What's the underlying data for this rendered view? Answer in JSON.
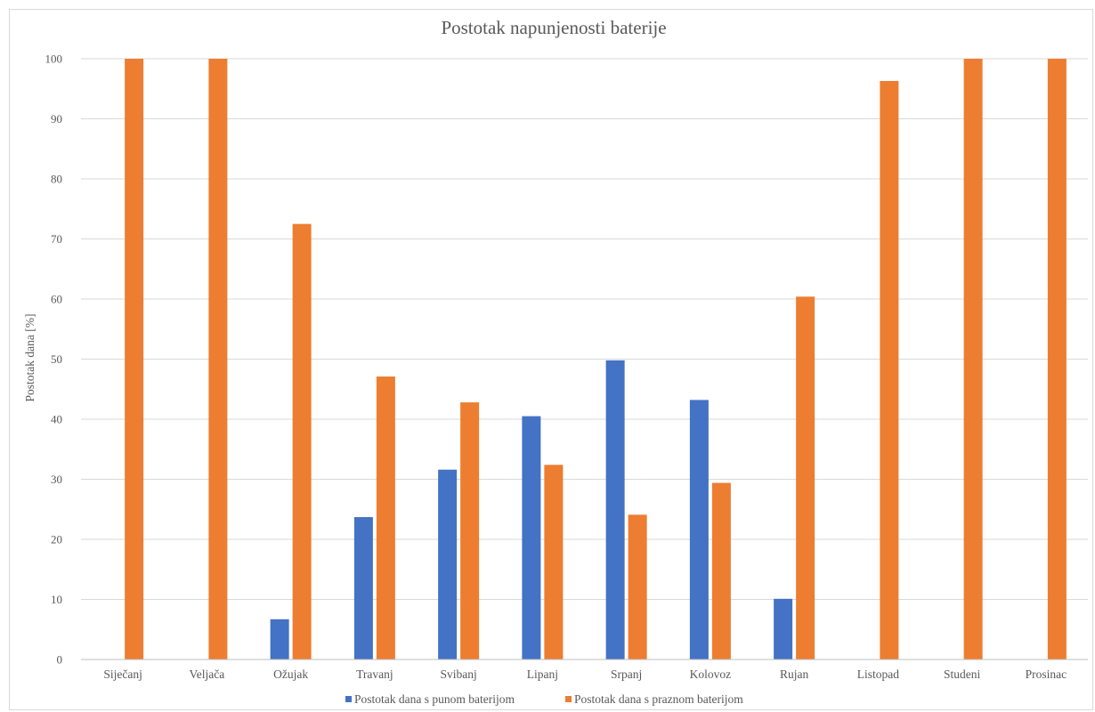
{
  "chart_data": {
    "type": "bar",
    "title": "Postotak napunjenosti baterije",
    "xlabel": "",
    "ylabel": "Postotak dana [%]",
    "ylim": [
      0,
      100
    ],
    "yticks": [
      "0",
      "10",
      "20",
      "30",
      "40",
      "50",
      "60",
      "70",
      "80",
      "90",
      "100"
    ],
    "grid": true,
    "legend_position": "bottom",
    "categories": [
      "Siječanj",
      "Veljača",
      "Ožujak",
      "Travanj",
      "Svibanj",
      "Lipanj",
      "Srpanj",
      "Kolovoz",
      "Rujan",
      "Listopad",
      "Studeni",
      "Prosinac"
    ],
    "series": [
      {
        "name": "Postotak dana s punom baterijom",
        "color": "#4472c4",
        "values": [
          0,
          0,
          6.7,
          23.7,
          31.6,
          40.5,
          49.8,
          43.2,
          10.1,
          0,
          0,
          0
        ]
      },
      {
        "name": "Postotak dana s praznom baterijom",
        "color": "#ed7d31",
        "values": [
          100,
          100,
          72.5,
          47.1,
          42.8,
          32.4,
          24.1,
          29.4,
          60.4,
          96.3,
          100,
          100
        ]
      }
    ]
  }
}
